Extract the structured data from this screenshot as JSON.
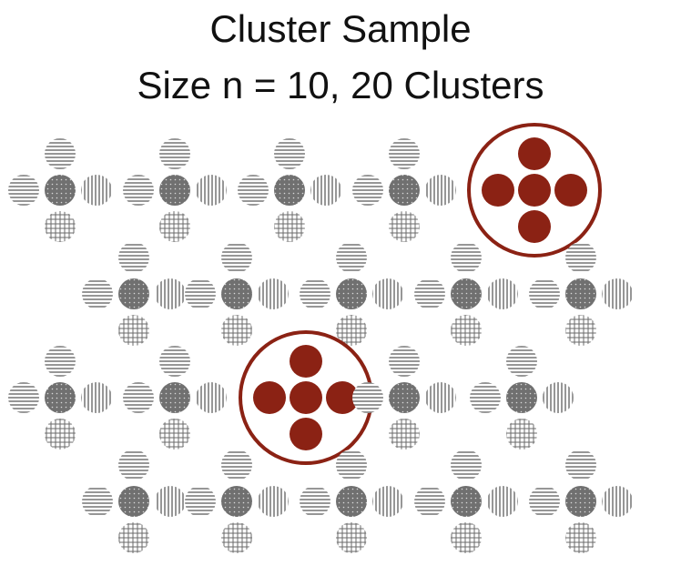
{
  "title_line1": "Cluster Sample",
  "title_line2": "Size n = 10,   20 Clusters",
  "colors": {
    "selected_fill": "#8B2214",
    "selected_ring": "#8B2214",
    "center_dot": "#6e6e6e",
    "pattern_stroke": "#6a6a6a",
    "background": "#ffffff"
  },
  "cluster_rows": [
    {
      "clusters": 5,
      "selected": [
        4
      ]
    },
    {
      "clusters": 5,
      "selected": []
    },
    {
      "clusters": 5,
      "selected": [
        2
      ]
    },
    {
      "clusters": 5,
      "selected": []
    }
  ],
  "unselected_members": [
    "top-horizontal-lines",
    "left-horizontal-lines",
    "center-dotted",
    "right-vertical-lines",
    "bottom-grid"
  ]
}
